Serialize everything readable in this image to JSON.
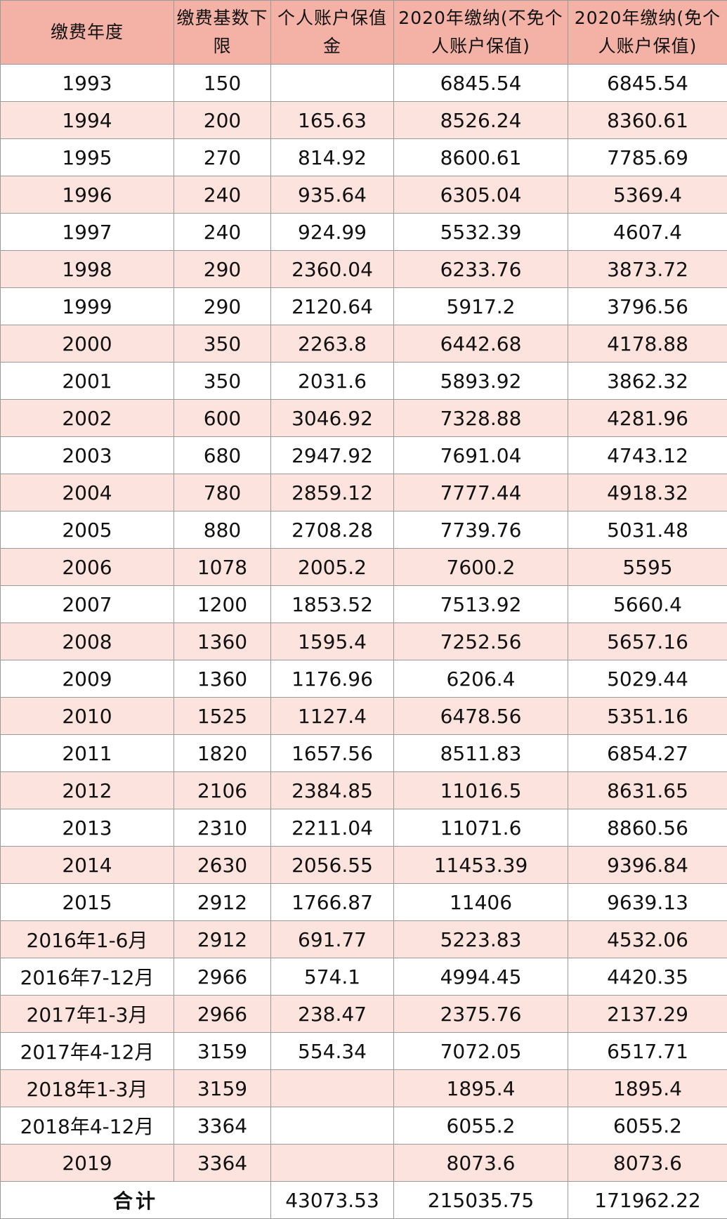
{
  "table": {
    "header": [
      "缴费年度",
      "缴费基数下限",
      "个人账户保值金",
      "2020年缴纳(不免个人账户保值)",
      "2020年缴纳(免个人账户保值)"
    ],
    "rows": [
      [
        "1993",
        150,
        null,
        6845.54,
        6845.54
      ],
      [
        "1994",
        200,
        165.63,
        8526.24,
        8360.61
      ],
      [
        "1995",
        270,
        814.92,
        8600.61,
        7785.69
      ],
      [
        "1996",
        240,
        935.64,
        6305.04,
        5369.4
      ],
      [
        "1997",
        240,
        924.99,
        5532.39,
        4607.4
      ],
      [
        "1998",
        290,
        2360.04,
        6233.76,
        3873.72
      ],
      [
        "1999",
        290,
        2120.64,
        5917.2,
        3796.56
      ],
      [
        "2000",
        350,
        2263.8,
        6442.68,
        4178.88
      ],
      [
        "2001",
        350,
        2031.6,
        5893.92,
        3862.32
      ],
      [
        "2002",
        600,
        3046.92,
        7328.88,
        4281.96
      ],
      [
        "2003",
        680,
        2947.92,
        7691.04,
        4743.12
      ],
      [
        "2004",
        780,
        2859.12,
        7777.44,
        4918.32
      ],
      [
        "2005",
        880,
        2708.28,
        7739.76,
        5031.48
      ],
      [
        "2006",
        1078,
        2005.2,
        7600.2,
        5595
      ],
      [
        "2007",
        1200,
        1853.52,
        7513.92,
        5660.4
      ],
      [
        "2008",
        1360,
        1595.4,
        7252.56,
        5657.16
      ],
      [
        "2009",
        1360,
        1176.96,
        6206.4,
        5029.44
      ],
      [
        "2010",
        1525,
        1127.4,
        6478.56,
        5351.16
      ],
      [
        "2011",
        1820,
        1657.56,
        8511.83,
        6854.27
      ],
      [
        "2012",
        2106,
        2384.85,
        11016.5,
        8631.65
      ],
      [
        "2013",
        2310,
        2211.04,
        11071.6,
        8860.56
      ],
      [
        "2014",
        2630,
        2056.55,
        11453.39,
        9396.84
      ],
      [
        "2015",
        2912,
        1766.87,
        11406,
        9639.13
      ],
      [
        "2016年1-6月",
        2912,
        691.77,
        5223.83,
        4532.06
      ],
      [
        "2016年7-12月",
        2966,
        574.1,
        4994.45,
        4420.35
      ],
      [
        "2017年1-3月",
        2966,
        238.47,
        2375.76,
        2137.29
      ],
      [
        "2017年4-12月",
        3159,
        554.34,
        7072.05,
        6517.71
      ],
      [
        "2018年1-3月",
        3159,
        null,
        1895.4,
        1895.4
      ],
      [
        "2018年4-12月",
        3364,
        null,
        6055.2,
        6055.2
      ],
      [
        "2019",
        3364,
        null,
        8073.6,
        8073.6
      ]
    ],
    "total": {
      "label": "合计",
      "values": [
        43073.53,
        215035.75,
        171962.22
      ]
    }
  }
}
